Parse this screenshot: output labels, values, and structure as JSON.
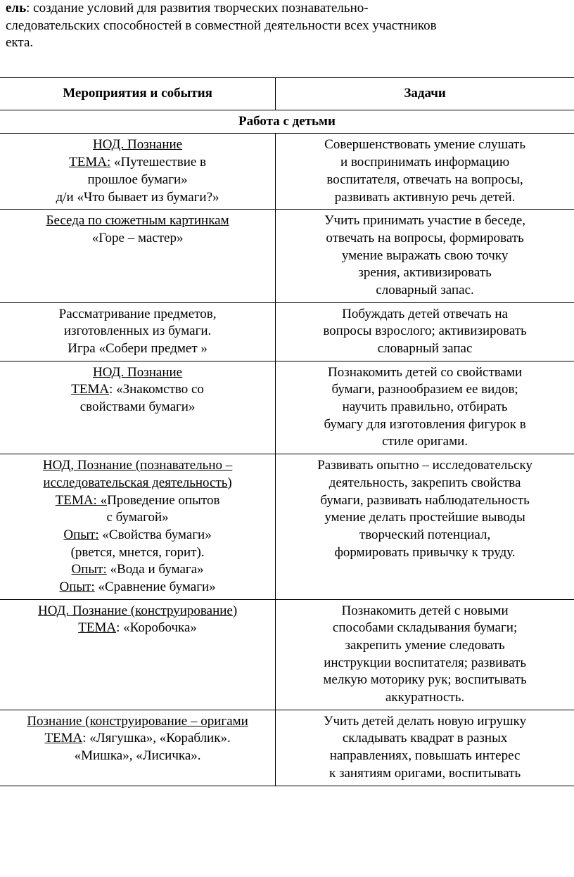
{
  "intro": {
    "label_bold": "ель",
    "text": ": создание условий для развития творческих познавательно-\nследовательских способностей в совместной деятельности всех участников\nекта."
  },
  "table": {
    "headers": {
      "col1": "Мероприятия и события",
      "col2": "Задачи"
    },
    "section": "Работа с детьми",
    "rows": [
      {
        "left": {
          "l1_u": "НОД. Познание",
          "l2_u": "ТЕМА:",
          "l2_rest": " «Путешествие в",
          "l3": "прошлое бумаги»",
          "l4": "д/и «Что бывает из бумаги?»"
        },
        "right": {
          "l1": "Совершенствовать умение слушать",
          "l2": "и воспринимать информацию",
          "l3": "воспитателя, отвечать на вопросы,",
          "l4": "развивать активную речь детей."
        }
      },
      {
        "left": {
          "l1_u": "Беседа по сюжетным картинкам",
          "l2": "«Горе – мастер»"
        },
        "right": {
          "l1": "Учить принимать участие в беседе,",
          "l2": "отвечать на вопросы, формировать",
          "l3": "умение выражать свою точку",
          "l4": "зрения, активизировать",
          "l5": "словарный запас."
        }
      },
      {
        "left": {
          "l1": "Рассматривание предметов,",
          "l2": "изготовленных из бумаги.",
          "l3": "Игра «Собери предмет »"
        },
        "right": {
          "l1": "Побуждать детей отвечать на",
          "l2": "вопросы взрослого; активизировать",
          "l3": "словарный запас"
        }
      },
      {
        "left": {
          "l1_u": "НОД. Познание",
          "l2_u": "ТЕМА",
          "l2_rest": ": «Знакомство со",
          "l3": "свойствами бумаги»"
        },
        "right": {
          "l1": "Познакомить детей со свойствами",
          "l2": "бумаги, разнообразием ее видов;",
          "l3": "научить правильно, отбирать",
          "l4": "бумагу для изготовления фигурок в",
          "l5": "стиле оригами."
        }
      },
      {
        "left": {
          "l1_u": "НОД, Познание (познавательно –",
          "l2_u": "исследовательская деятельность)",
          "l3_u": "ТЕМА: «",
          "l3_rest": "Проведение опытов",
          "l4": "с бумагой»",
          "l5_u": "Опыт:",
          "l5_rest": " «Свойства бумаги»",
          "l6": "(рвется, мнется, горит).",
          "l7_u": "Опыт:",
          "l7_rest": " «Вода и бумага»",
          "l8_u": "Опыт:",
          "l8_rest": " «Сравнение бумаги»"
        },
        "right": {
          "l1": "Развивать опытно – исследовательску",
          "l2": "деятельность, закрепить свойства",
          "l3": "бумаги, развивать наблюдательность",
          "l4": "умение делать простейшие выводы",
          "l5": "творческий потенциал,",
          "l6": "формировать привычку к труду."
        }
      },
      {
        "left": {
          "l1_u": "НОД. Познание (конструирование)",
          "l2_u": "ТЕМА",
          "l2_rest": ": «Коробочка»"
        },
        "right": {
          "l1": "Познакомить детей с новыми",
          "l2": "способами складывания бумаги;",
          "l3": "закрепить умение следовать",
          "l4": "инструкции воспитателя; развивать",
          "l5": "мелкую моторику рук; воспитывать",
          "l6": "аккуратность."
        }
      },
      {
        "left": {
          "l1_u": " Познание (конструирование – оригами",
          "l2_u": "ТЕМА",
          "l2_rest": ": «Лягушка», «Кораблик».",
          "l3": "«Мишка», «Лисичка»."
        },
        "right": {
          "l1": "Учить детей делать новую игрушку",
          "l2": "складывать квадрат в разных",
          "l3": "направлениях, повышать интерес",
          "l4": "к занятиям оригами, воспитывать"
        }
      }
    ]
  }
}
